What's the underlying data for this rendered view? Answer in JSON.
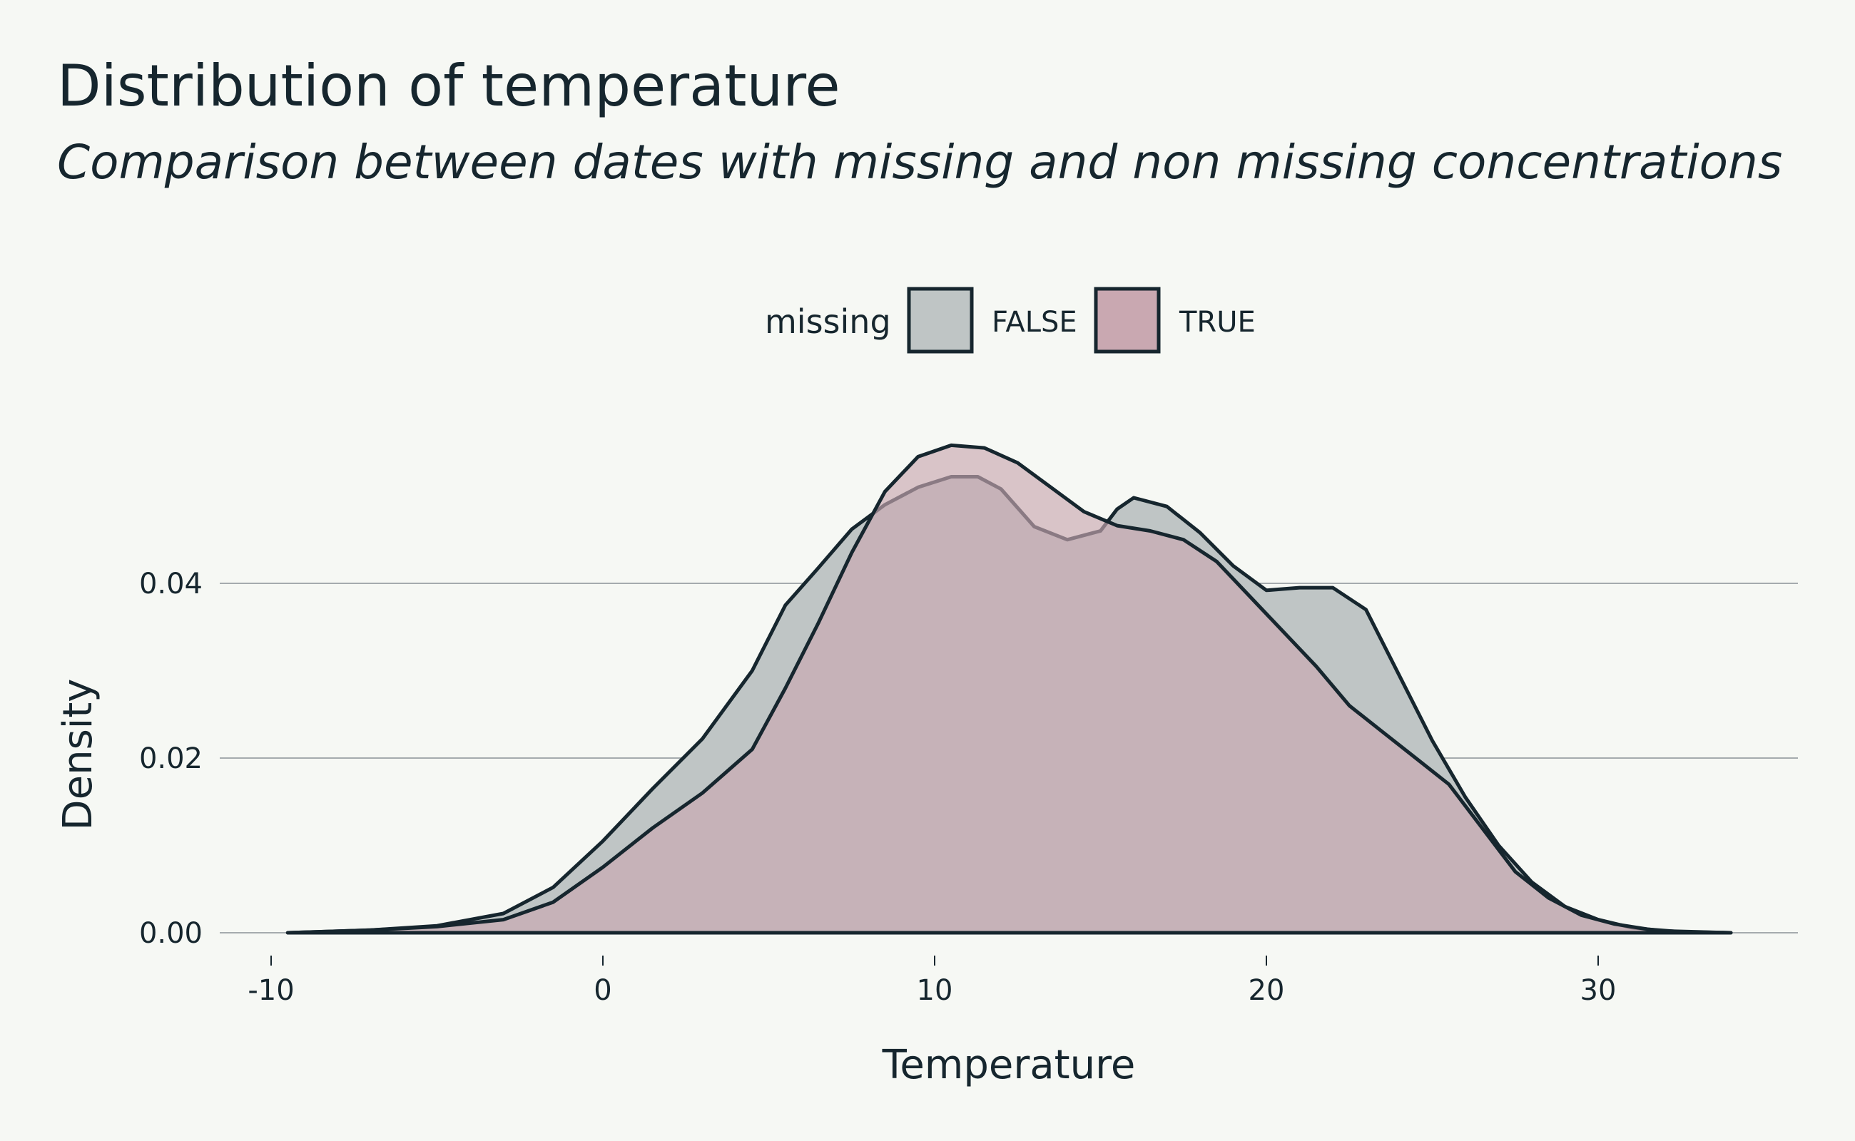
{
  "chart_data": {
    "type": "area",
    "title": "Distribution of temperature",
    "subtitle": "Comparison between dates with missing and non missing concentrations",
    "xlabel": "Temperature",
    "ylabel": "Density",
    "xlim": [
      -11,
      36
    ],
    "ylim": [
      0,
      0.06
    ],
    "x_ticks": [
      -10,
      0,
      10,
      20,
      30
    ],
    "x_tick_labels": [
      "-10",
      "0",
      "10",
      "20",
      "30"
    ],
    "y_ticks": [
      0.0,
      0.02,
      0.04
    ],
    "y_tick_labels": [
      "0.00",
      "0.02",
      "0.04"
    ],
    "grid": "horizontal",
    "legend": {
      "title": "missing",
      "placement": "top",
      "entries": [
        "FALSE",
        "TRUE"
      ]
    },
    "series": [
      {
        "name": "FALSE",
        "color": "#bfc5c5",
        "opacity": 1.0,
        "points": [
          [
            -9.5,
            0
          ],
          [
            -7,
            0.0003
          ],
          [
            -5,
            0.0008
          ],
          [
            -3,
            0.0022
          ],
          [
            -1.5,
            0.0052
          ],
          [
            0,
            0.0105
          ],
          [
            1.5,
            0.0165
          ],
          [
            3,
            0.0222
          ],
          [
            4.5,
            0.03
          ],
          [
            5.5,
            0.0375
          ],
          [
            6.5,
            0.0418
          ],
          [
            7.5,
            0.0462
          ],
          [
            8.5,
            0.049
          ],
          [
            9.5,
            0.051
          ],
          [
            10.5,
            0.0522
          ],
          [
            11.3,
            0.0522
          ],
          [
            12,
            0.0508
          ],
          [
            13,
            0.0465
          ],
          [
            14,
            0.045
          ],
          [
            15,
            0.046
          ],
          [
            15.5,
            0.0485
          ],
          [
            16,
            0.0498
          ],
          [
            17,
            0.0488
          ],
          [
            18,
            0.0458
          ],
          [
            19,
            0.042
          ],
          [
            20,
            0.0392
          ],
          [
            21,
            0.0395
          ],
          [
            22,
            0.0395
          ],
          [
            23,
            0.037
          ],
          [
            24,
            0.0295
          ],
          [
            25,
            0.022
          ],
          [
            26,
            0.0155
          ],
          [
            27,
            0.01
          ],
          [
            28,
            0.0058
          ],
          [
            29,
            0.003
          ],
          [
            30,
            0.0015
          ],
          [
            31,
            0.0006
          ],
          [
            32,
            0.0002
          ],
          [
            33,
            0.0001
          ],
          [
            34,
            0
          ]
        ]
      },
      {
        "name": "TRUE",
        "color": "#c9a8b1",
        "opacity": 0.65,
        "points": [
          [
            -9.5,
            0
          ],
          [
            -7,
            0.0003
          ],
          [
            -5,
            0.0007
          ],
          [
            -3,
            0.0015
          ],
          [
            -1.5,
            0.0035
          ],
          [
            0,
            0.0075
          ],
          [
            1.5,
            0.012
          ],
          [
            3,
            0.016
          ],
          [
            4.5,
            0.021
          ],
          [
            5.5,
            0.028
          ],
          [
            6.5,
            0.0355
          ],
          [
            7.5,
            0.0435
          ],
          [
            8.5,
            0.0505
          ],
          [
            9.5,
            0.0545
          ],
          [
            10.5,
            0.0558
          ],
          [
            11.5,
            0.0555
          ],
          [
            12.5,
            0.0538
          ],
          [
            13.5,
            0.051
          ],
          [
            14.5,
            0.0482
          ],
          [
            15.5,
            0.0466
          ],
          [
            16.5,
            0.046
          ],
          [
            17.5,
            0.045
          ],
          [
            18.5,
            0.0425
          ],
          [
            19.5,
            0.0385
          ],
          [
            20.5,
            0.0345
          ],
          [
            21.5,
            0.0305
          ],
          [
            22.5,
            0.026
          ],
          [
            23.5,
            0.023
          ],
          [
            24.5,
            0.02
          ],
          [
            25.5,
            0.017
          ],
          [
            26.5,
            0.012
          ],
          [
            27.5,
            0.007
          ],
          [
            28.5,
            0.004
          ],
          [
            29.5,
            0.002
          ],
          [
            30.5,
            0.001
          ],
          [
            31.5,
            0.0004
          ],
          [
            32.5,
            0.0001
          ],
          [
            34,
            0
          ]
        ]
      }
    ]
  },
  "colors": {
    "background": "#f6f8f4",
    "text": "#16262e",
    "outline": "#16262e",
    "gridline": "#8a9196"
  }
}
